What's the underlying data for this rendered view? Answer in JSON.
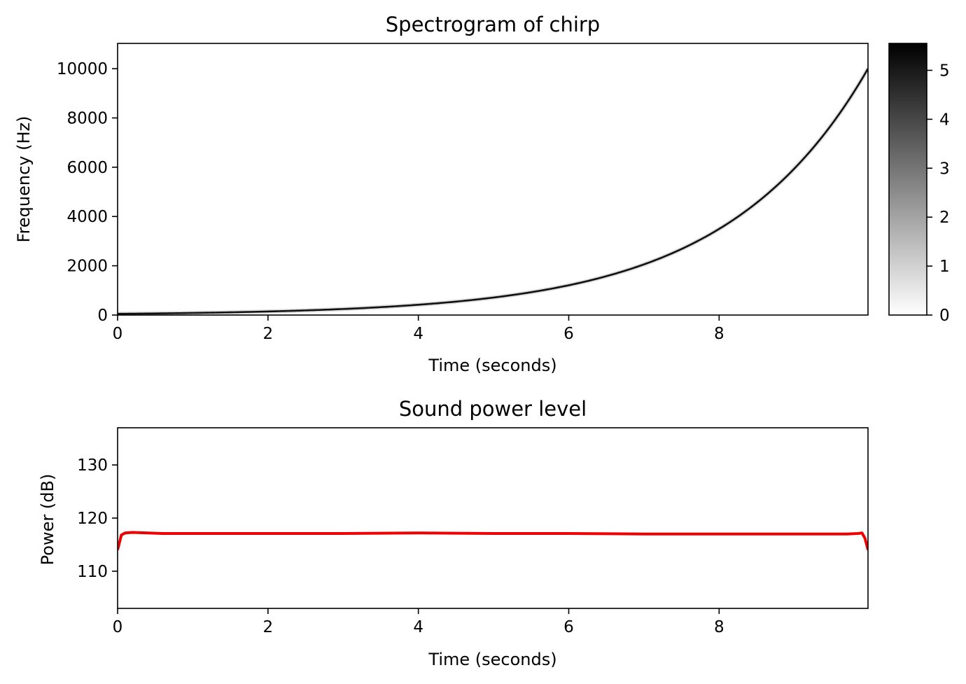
{
  "chart_data": [
    {
      "type": "heatmap",
      "title": "Spectrogram of chirp",
      "xlabel": "Time (seconds)",
      "ylabel": "Frequency (Hz)",
      "xlim": [
        0,
        9.98
      ],
      "ylim": [
        0,
        11025
      ],
      "xticks": [
        0,
        2,
        4,
        6,
        8
      ],
      "yticks": [
        0,
        2000,
        4000,
        6000,
        8000,
        10000
      ],
      "grid": false,
      "chirp": {
        "description_of_signal": "exponential chirp",
        "start_frequency": 50,
        "end_frequency": 10000,
        "duration": 9.98
      },
      "colorbar": {
        "colormap": "gray_r",
        "min": 0,
        "max": 5.55,
        "ticks": [
          0,
          1,
          2,
          3,
          4,
          5
        ],
        "min_color": "#ffffff",
        "max_color": "#000000"
      },
      "line_color": "#111111"
    },
    {
      "type": "line",
      "title": "Sound power level",
      "xlabel": "Time (seconds)",
      "ylabel": "Power (dB)",
      "xlim": [
        0,
        9.98
      ],
      "ylim": [
        103,
        137
      ],
      "xticks": [
        0,
        2,
        4,
        6,
        8
      ],
      "yticks": [
        110,
        120,
        130
      ],
      "grid": false,
      "series": [
        {
          "name": "power",
          "color": "#ee0000",
          "x": [
            0,
            0.05,
            0.1,
            0.2,
            0.4,
            0.6,
            1,
            2,
            3,
            4,
            5,
            6,
            7,
            8,
            9,
            9.7,
            9.85,
            9.9,
            9.94,
            9.98
          ],
          "y": [
            114,
            116.8,
            117.2,
            117.3,
            117.2,
            117.1,
            117.1,
            117.1,
            117.1,
            117.2,
            117.1,
            117.1,
            117.0,
            117.0,
            117.0,
            117.0,
            117.1,
            117.2,
            116.2,
            114
          ]
        }
      ]
    }
  ]
}
